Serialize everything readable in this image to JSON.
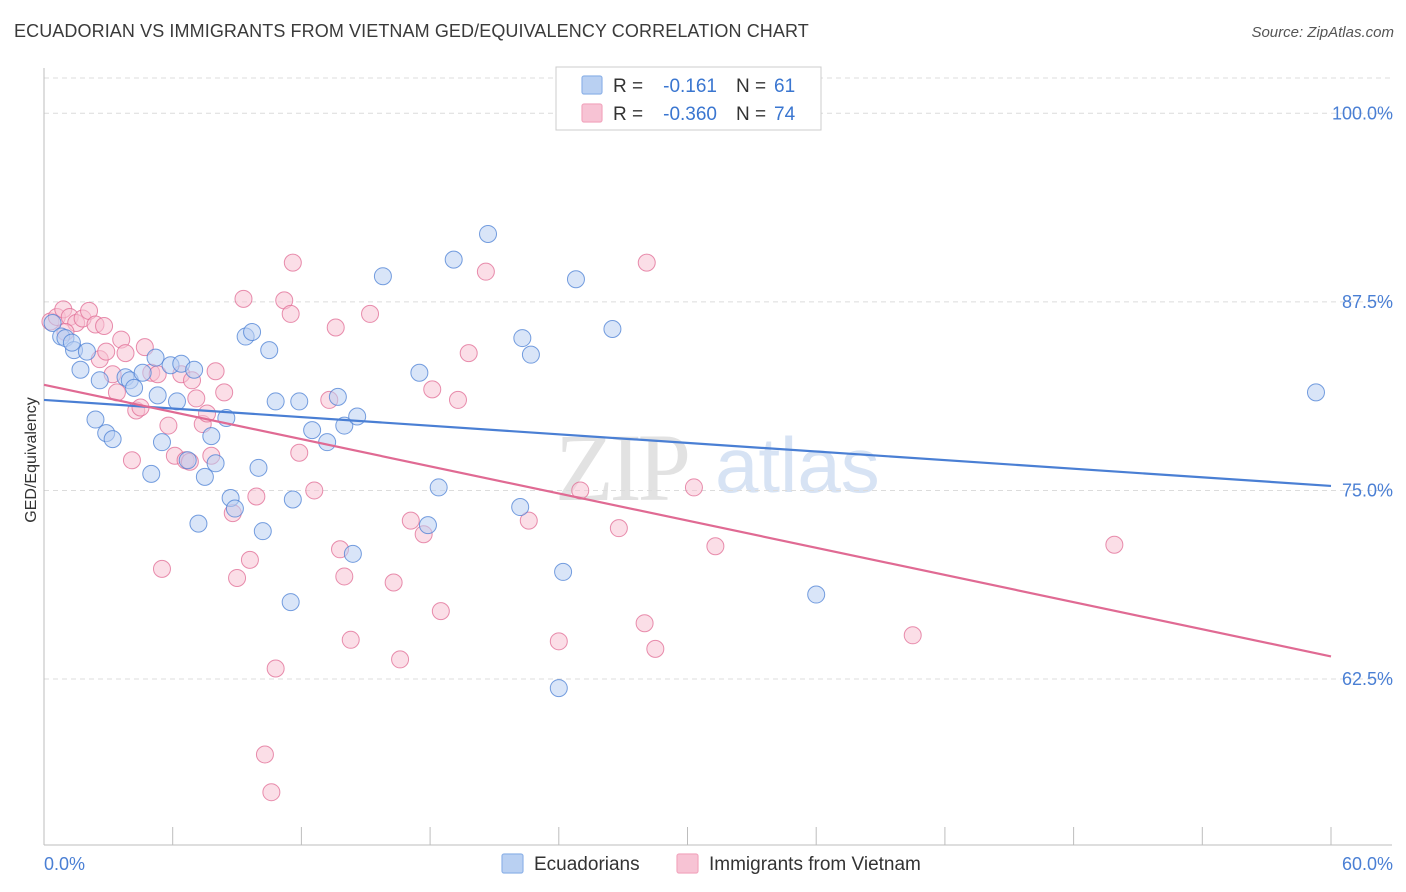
{
  "header": {
    "title": "ECUADORIAN VS IMMIGRANTS FROM VIETNAM GED/EQUIVALENCY CORRELATION CHART",
    "source": "Source: ZipAtlas.com"
  },
  "watermark": {
    "zip": "ZIP",
    "atlas": "atlas"
  },
  "legend_box": {
    "rows": [
      {
        "r_label": "R =",
        "r_value": "-0.161",
        "n_label": "N =",
        "n_value": "61",
        "color": "#8fb3e8"
      },
      {
        "r_label": "R =",
        "r_value": "-0.360",
        "n_label": "N =",
        "n_value": "74",
        "color": "#f2a7bf"
      }
    ]
  },
  "bottom_legend": [
    {
      "label": "Ecuadorians",
      "color": "#8fb3e8"
    },
    {
      "label": "Immigrants from Vietnam",
      "color": "#f2a7bf"
    }
  ],
  "chart_data": {
    "type": "scatter",
    "title": "ECUADORIAN VS IMMIGRANTS FROM VIETNAM GED/EQUIVALENCY CORRELATION CHART",
    "xlabel": "",
    "ylabel": "GED/Equivalency",
    "xlim": [
      0,
      60
    ],
    "ylim": [
      51.5,
      103
    ],
    "x_tick_labels": [
      "0.0%",
      "60.0%"
    ],
    "y_ticks": [
      62.5,
      75.0,
      87.5,
      100.0
    ],
    "y_tick_labels": [
      "62.5%",
      "75.0%",
      "87.5%",
      "100.0%"
    ],
    "grid": true,
    "series": [
      {
        "name": "Ecuadorians",
        "color": "#4a7fd4",
        "fill": "#b9d0f2",
        "trend": {
          "x": [
            0,
            60
          ],
          "y": [
            81.0,
            75.3
          ]
        },
        "points": [
          [
            0.4,
            86.1
          ],
          [
            0.8,
            85.2
          ],
          [
            1.0,
            85.1
          ],
          [
            1.4,
            84.3
          ],
          [
            1.7,
            83.0
          ],
          [
            2.0,
            84.2
          ],
          [
            2.4,
            79.7
          ],
          [
            2.6,
            82.3
          ],
          [
            2.9,
            78.8
          ],
          [
            3.2,
            78.4
          ],
          [
            3.8,
            82.5
          ],
          [
            4.0,
            82.3
          ],
          [
            4.2,
            81.8
          ],
          [
            4.6,
            82.8
          ],
          [
            5.0,
            76.1
          ],
          [
            5.2,
            83.8
          ],
          [
            5.3,
            81.3
          ],
          [
            5.5,
            78.2
          ],
          [
            5.9,
            83.3
          ],
          [
            6.2,
            80.9
          ],
          [
            6.4,
            83.4
          ],
          [
            6.7,
            77.0
          ],
          [
            7.0,
            83.0
          ],
          [
            7.2,
            72.8
          ],
          [
            7.5,
            75.9
          ],
          [
            7.8,
            78.6
          ],
          [
            8.0,
            76.8
          ],
          [
            8.5,
            79.8
          ],
          [
            8.7,
            74.5
          ],
          [
            8.9,
            73.8
          ],
          [
            9.4,
            85.2
          ],
          [
            9.7,
            85.5
          ],
          [
            10.0,
            76.5
          ],
          [
            10.2,
            72.3
          ],
          [
            10.5,
            84.3
          ],
          [
            10.8,
            80.9
          ],
          [
            11.5,
            67.6
          ],
          [
            11.6,
            74.4
          ],
          [
            11.9,
            80.9
          ],
          [
            12.5,
            79.0
          ],
          [
            13.2,
            78.2
          ],
          [
            13.7,
            81.2
          ],
          [
            14.0,
            79.3
          ],
          [
            14.4,
            70.8
          ],
          [
            14.6,
            79.9
          ],
          [
            15.8,
            89.2
          ],
          [
            17.5,
            82.8
          ],
          [
            17.9,
            72.7
          ],
          [
            18.4,
            75.2
          ],
          [
            19.1,
            90.3
          ],
          [
            20.7,
            92.0
          ],
          [
            22.2,
            73.9
          ],
          [
            22.3,
            85.1
          ],
          [
            22.7,
            84.0
          ],
          [
            24.0,
            61.9
          ],
          [
            24.2,
            69.6
          ],
          [
            24.8,
            89.0
          ],
          [
            26.5,
            85.7
          ],
          [
            36.0,
            68.1
          ],
          [
            59.3,
            81.5
          ],
          [
            1.3,
            84.8
          ]
        ]
      },
      {
        "name": "Immigrants from Vietnam",
        "color": "#e06a93",
        "fill": "#f7c3d4",
        "trend": {
          "x": [
            0,
            60
          ],
          "y": [
            82.0,
            64.0
          ]
        },
        "points": [
          [
            0.3,
            86.2
          ],
          [
            0.6,
            86.5
          ],
          [
            0.9,
            87.0
          ],
          [
            1.2,
            86.5
          ],
          [
            1.5,
            86.1
          ],
          [
            1.8,
            86.4
          ],
          [
            2.1,
            86.9
          ],
          [
            2.4,
            86.0
          ],
          [
            2.6,
            83.7
          ],
          [
            2.9,
            84.2
          ],
          [
            3.2,
            82.7
          ],
          [
            3.4,
            81.5
          ],
          [
            3.6,
            85.0
          ],
          [
            3.8,
            84.1
          ],
          [
            4.1,
            77.0
          ],
          [
            4.3,
            80.3
          ],
          [
            4.5,
            80.5
          ],
          [
            5.0,
            82.8
          ],
          [
            5.3,
            82.7
          ],
          [
            5.5,
            69.8
          ],
          [
            5.8,
            79.3
          ],
          [
            6.1,
            77.3
          ],
          [
            6.4,
            82.7
          ],
          [
            6.6,
            77.0
          ],
          [
            6.9,
            82.3
          ],
          [
            7.1,
            81.1
          ],
          [
            7.4,
            79.4
          ],
          [
            7.6,
            80.1
          ],
          [
            7.8,
            77.3
          ],
          [
            8.0,
            82.9
          ],
          [
            8.4,
            81.5
          ],
          [
            8.8,
            73.5
          ],
          [
            9.0,
            69.2
          ],
          [
            9.3,
            87.7
          ],
          [
            9.6,
            70.4
          ],
          [
            9.9,
            74.6
          ],
          [
            10.3,
            57.5
          ],
          [
            10.6,
            55.0
          ],
          [
            10.8,
            63.2
          ],
          [
            11.2,
            87.6
          ],
          [
            11.5,
            86.7
          ],
          [
            11.6,
            90.1
          ],
          [
            11.9,
            77.5
          ],
          [
            12.6,
            75.0
          ],
          [
            13.3,
            81.0
          ],
          [
            13.6,
            85.8
          ],
          [
            13.8,
            71.1
          ],
          [
            14.0,
            69.3
          ],
          [
            14.3,
            65.1
          ],
          [
            15.2,
            86.7
          ],
          [
            16.3,
            68.9
          ],
          [
            16.6,
            63.8
          ],
          [
            17.1,
            73.0
          ],
          [
            17.7,
            72.1
          ],
          [
            18.1,
            81.7
          ],
          [
            18.5,
            67.0
          ],
          [
            19.3,
            81.0
          ],
          [
            19.8,
            84.1
          ],
          [
            20.6,
            89.5
          ],
          [
            22.6,
            73.0
          ],
          [
            24.0,
            65.0
          ],
          [
            25.0,
            75.0
          ],
          [
            26.8,
            72.5
          ],
          [
            28.0,
            66.2
          ],
          [
            28.1,
            90.1
          ],
          [
            28.5,
            64.5
          ],
          [
            30.3,
            75.2
          ],
          [
            31.3,
            71.3
          ],
          [
            40.5,
            65.4
          ],
          [
            49.9,
            71.4
          ],
          [
            1.0,
            85.5
          ],
          [
            2.8,
            85.9
          ],
          [
            4.7,
            84.5
          ],
          [
            6.8,
            76.9
          ]
        ]
      }
    ]
  }
}
